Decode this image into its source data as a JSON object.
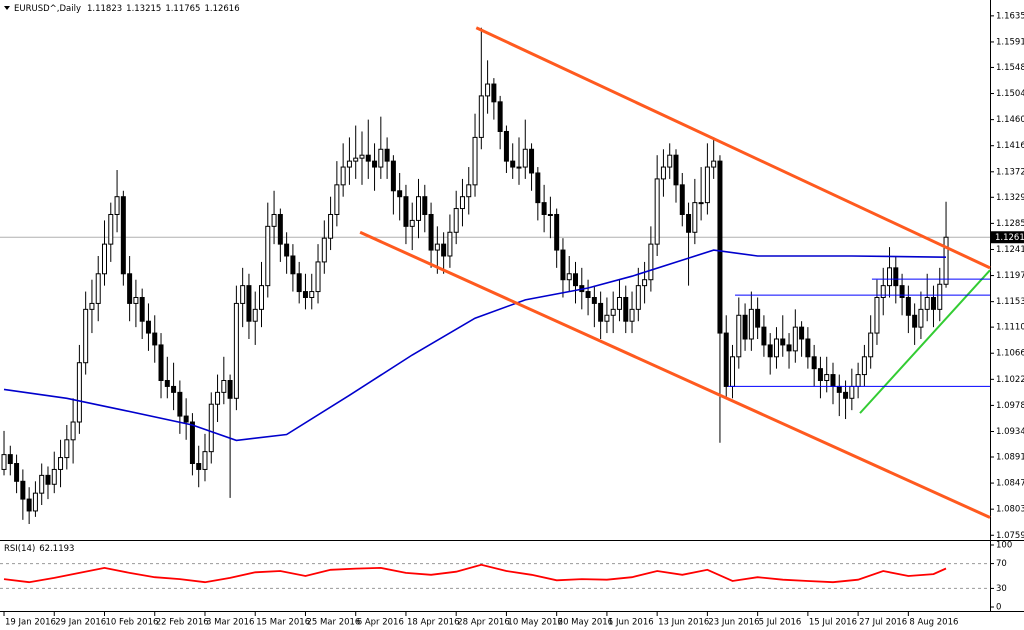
{
  "chart_data": {
    "type": "candlestick",
    "title": "EURUSD^,Daily",
    "categories": [
      "19 Jan 2016",
      null,
      null,
      null,
      null,
      null,
      null,
      null,
      "29 Jan 2016",
      null,
      null,
      null,
      null,
      null,
      null,
      null,
      "10 Feb 2016",
      null,
      null,
      null,
      null,
      null,
      null,
      null,
      "22 Feb 2016",
      null,
      null,
      null,
      null,
      null,
      null,
      null,
      "3 Mar 2016",
      null,
      null,
      null,
      null,
      null,
      null,
      null,
      "15 Mar 2016",
      null,
      null,
      null,
      null,
      null,
      null,
      null,
      "25 Mar 2016",
      null,
      null,
      null,
      null,
      null,
      null,
      null,
      "6 Apr 2016",
      null,
      null,
      null,
      null,
      null,
      null,
      null,
      "18 Apr 2016",
      null,
      null,
      null,
      null,
      null,
      null,
      null,
      "28 Apr 2016",
      null,
      null,
      null,
      null,
      null,
      null,
      null,
      "10 May 2016",
      null,
      null,
      null,
      null,
      null,
      null,
      null,
      "20 May 2016",
      null,
      null,
      null,
      null,
      null,
      null,
      null,
      "1 Jun 2016",
      null,
      null,
      null,
      null,
      null,
      null,
      null,
      "13 Jun 2016",
      null,
      null,
      null,
      null,
      null,
      null,
      null,
      "23 Jun 2016",
      null,
      null,
      null,
      null,
      null,
      null,
      null,
      "5 Jul 2016",
      null,
      null,
      null,
      null,
      null,
      null,
      null,
      "15 Jul 2016",
      null,
      null,
      null,
      null,
      null,
      null,
      null,
      "27 Jul 2016",
      null,
      null,
      null,
      null,
      null,
      null,
      null,
      "8 Aug 2016",
      null,
      null,
      null,
      null,
      null,
      null
    ],
    "ohlc": [
      [
        1.087,
        1.0935,
        1.086,
        1.0895
      ],
      [
        1.0895,
        1.091,
        1.086,
        1.088
      ],
      [
        1.088,
        1.0895,
        1.083,
        1.085
      ],
      [
        1.085,
        1.087,
        1.0785,
        1.082
      ],
      [
        1.082,
        1.084,
        1.0778,
        1.08
      ],
      [
        1.08,
        1.085,
        1.079,
        1.083
      ],
      [
        1.083,
        1.088,
        1.081,
        1.086
      ],
      [
        1.086,
        1.0875,
        1.082,
        1.0845
      ],
      [
        1.0845,
        1.09,
        1.083,
        1.087
      ],
      [
        1.087,
        1.092,
        1.084,
        1.089
      ],
      [
        1.089,
        1.0945,
        1.087,
        1.092
      ],
      [
        1.092,
        1.099,
        1.088,
        1.095
      ],
      [
        1.095,
        1.108,
        1.093,
        1.105
      ],
      [
        1.105,
        1.117,
        1.103,
        1.114
      ],
      [
        1.114,
        1.119,
        1.11,
        1.115
      ],
      [
        1.115,
        1.123,
        1.112,
        1.12
      ],
      [
        1.12,
        1.129,
        1.118,
        1.125
      ],
      [
        1.125,
        1.132,
        1.122,
        1.13
      ],
      [
        1.13,
        1.1375,
        1.127,
        1.133
      ],
      [
        1.133,
        1.134,
        1.118,
        1.12
      ],
      [
        1.12,
        1.123,
        1.112,
        1.115
      ],
      [
        1.115,
        1.119,
        1.111,
        1.116
      ],
      [
        1.116,
        1.1175,
        1.109,
        1.112
      ],
      [
        1.112,
        1.115,
        1.107,
        1.11
      ],
      [
        1.11,
        1.113,
        1.105,
        1.108
      ],
      [
        1.108,
        1.11,
        1.099,
        1.102
      ],
      [
        1.102,
        1.106,
        1.099,
        1.101
      ],
      [
        1.101,
        1.105,
        1.097,
        1.1
      ],
      [
        1.1,
        1.102,
        1.093,
        1.096
      ],
      [
        1.096,
        1.099,
        1.092,
        1.095
      ],
      [
        1.095,
        1.0965,
        1.086,
        1.088
      ],
      [
        1.088,
        1.091,
        1.084,
        1.087
      ],
      [
        1.087,
        1.093,
        1.085,
        1.09
      ],
      [
        1.09,
        1.1,
        1.088,
        1.098
      ],
      [
        1.098,
        1.103,
        1.095,
        1.1
      ],
      [
        1.1,
        1.106,
        1.098,
        1.102
      ],
      [
        1.102,
        1.103,
        1.0822,
        1.099
      ],
      [
        1.099,
        1.118,
        1.097,
        1.115
      ],
      [
        1.115,
        1.121,
        1.111,
        1.118
      ],
      [
        1.118,
        1.12,
        1.109,
        1.112
      ],
      [
        1.112,
        1.117,
        1.108,
        1.114
      ],
      [
        1.114,
        1.122,
        1.111,
        1.118
      ],
      [
        1.118,
        1.132,
        1.116,
        1.128
      ],
      [
        1.128,
        1.134,
        1.125,
        1.13
      ],
      [
        1.13,
        1.131,
        1.122,
        1.125
      ],
      [
        1.125,
        1.127,
        1.12,
        1.123
      ],
      [
        1.123,
        1.125,
        1.117,
        1.12
      ],
      [
        1.12,
        1.122,
        1.115,
        1.117
      ],
      [
        1.117,
        1.12,
        1.114,
        1.116
      ],
      [
        1.116,
        1.12,
        1.114,
        1.117
      ],
      [
        1.117,
        1.125,
        1.115,
        1.122
      ],
      [
        1.122,
        1.129,
        1.12,
        1.126
      ],
      [
        1.126,
        1.133,
        1.124,
        1.13
      ],
      [
        1.13,
        1.139,
        1.128,
        1.135
      ],
      [
        1.135,
        1.142,
        1.133,
        1.138
      ],
      [
        1.138,
        1.143,
        1.135,
        1.139
      ],
      [
        1.139,
        1.145,
        1.136,
        1.1395
      ],
      [
        1.1395,
        1.144,
        1.135,
        1.14
      ],
      [
        1.14,
        1.146,
        1.136,
        1.139
      ],
      [
        1.139,
        1.142,
        1.134,
        1.138
      ],
      [
        1.138,
        1.1465,
        1.136,
        1.141
      ],
      [
        1.141,
        1.143,
        1.136,
        1.139
      ],
      [
        1.139,
        1.14,
        1.13,
        1.134
      ],
      [
        1.134,
        1.137,
        1.129,
        1.133
      ],
      [
        1.133,
        1.135,
        1.125,
        1.128
      ],
      [
        1.128,
        1.132,
        1.124,
        1.129
      ],
      [
        1.129,
        1.136,
        1.126,
        1.133
      ],
      [
        1.133,
        1.135,
        1.127,
        1.13
      ],
      [
        1.13,
        1.132,
        1.121,
        1.124
      ],
      [
        1.124,
        1.128,
        1.12,
        1.125
      ],
      [
        1.125,
        1.127,
        1.12,
        1.123
      ],
      [
        1.123,
        1.13,
        1.121,
        1.127
      ],
      [
        1.127,
        1.134,
        1.125,
        1.131
      ],
      [
        1.131,
        1.136,
        1.128,
        1.133
      ],
      [
        1.133,
        1.138,
        1.13,
        1.135
      ],
      [
        1.135,
        1.147,
        1.133,
        1.143
      ],
      [
        1.143,
        1.1615,
        1.141,
        1.15
      ],
      [
        1.15,
        1.156,
        1.147,
        1.152
      ],
      [
        1.152,
        1.153,
        1.146,
        1.149
      ],
      [
        1.149,
        1.15,
        1.141,
        1.144
      ],
      [
        1.144,
        1.145,
        1.137,
        1.139
      ],
      [
        1.139,
        1.142,
        1.136,
        1.138
      ],
      [
        1.138,
        1.143,
        1.135,
        1.138
      ],
      [
        1.138,
        1.146,
        1.136,
        1.141
      ],
      [
        1.141,
        1.142,
        1.134,
        1.137
      ],
      [
        1.137,
        1.138,
        1.129,
        1.132
      ],
      [
        1.132,
        1.135,
        1.127,
        1.13
      ],
      [
        1.13,
        1.133,
        1.126,
        1.13
      ],
      [
        1.13,
        1.131,
        1.121,
        1.124
      ],
      [
        1.124,
        1.126,
        1.116,
        1.119
      ],
      [
        1.119,
        1.123,
        1.117,
        1.12
      ],
      [
        1.12,
        1.122,
        1.115,
        1.118
      ],
      [
        1.118,
        1.121,
        1.114,
        1.117
      ],
      [
        1.117,
        1.119,
        1.113,
        1.116
      ],
      [
        1.116,
        1.118,
        1.111,
        1.115
      ],
      [
        1.115,
        1.117,
        1.109,
        1.112
      ],
      [
        1.112,
        1.116,
        1.11,
        1.113
      ],
      [
        1.113,
        1.117,
        1.11,
        1.114
      ],
      [
        1.114,
        1.119,
        1.112,
        1.116
      ],
      [
        1.116,
        1.118,
        1.11,
        1.112
      ],
      [
        1.112,
        1.117,
        1.11,
        1.114
      ],
      [
        1.114,
        1.121,
        1.112,
        1.118
      ],
      [
        1.118,
        1.122,
        1.115,
        1.119
      ],
      [
        1.119,
        1.128,
        1.117,
        1.125
      ],
      [
        1.125,
        1.14,
        1.123,
        1.136
      ],
      [
        1.136,
        1.141,
        1.133,
        1.138
      ],
      [
        1.138,
        1.142,
        1.136,
        1.14
      ],
      [
        1.14,
        1.141,
        1.132,
        1.135
      ],
      [
        1.135,
        1.137,
        1.128,
        1.13
      ],
      [
        1.13,
        1.132,
        1.118,
        1.127
      ],
      [
        1.127,
        1.136,
        1.125,
        1.132
      ],
      [
        1.132,
        1.138,
        1.129,
        1.132
      ],
      [
        1.132,
        1.142,
        1.13,
        1.138
      ],
      [
        1.138,
        1.143,
        1.136,
        1.139
      ],
      [
        1.139,
        1.14,
        1.0915,
        1.11
      ],
      [
        1.11,
        1.113,
        1.099,
        1.101
      ],
      [
        1.101,
        1.108,
        1.099,
        1.106
      ],
      [
        1.106,
        1.116,
        1.104,
        1.113
      ],
      [
        1.113,
        1.115,
        1.107,
        1.109
      ],
      [
        1.109,
        1.117,
        1.107,
        1.114
      ],
      [
        1.114,
        1.116,
        1.109,
        1.111
      ],
      [
        1.111,
        1.113,
        1.106,
        1.108
      ],
      [
        1.108,
        1.11,
        1.103,
        1.106
      ],
      [
        1.106,
        1.111,
        1.104,
        1.109
      ],
      [
        1.109,
        1.113,
        1.106,
        1.108
      ],
      [
        1.108,
        1.11,
        1.104,
        1.107
      ],
      [
        1.107,
        1.114,
        1.105,
        1.111
      ],
      [
        1.111,
        1.112,
        1.106,
        1.109
      ],
      [
        1.109,
        1.111,
        1.104,
        1.106
      ],
      [
        1.106,
        1.108,
        1.101,
        1.104
      ],
      [
        1.104,
        1.106,
        1.099,
        1.102
      ],
      [
        1.102,
        1.106,
        1.1,
        1.103
      ],
      [
        1.103,
        1.105,
        1.098,
        1.101
      ],
      [
        1.101,
        1.103,
        1.096,
        1.1
      ],
      [
        1.1,
        1.102,
        1.0955,
        1.099
      ],
      [
        1.099,
        1.104,
        1.097,
        1.101
      ],
      [
        1.101,
        1.105,
        1.099,
        1.103
      ],
      [
        1.103,
        1.108,
        1.101,
        1.106
      ],
      [
        1.106,
        1.113,
        1.104,
        1.11
      ],
      [
        1.11,
        1.119,
        1.108,
        1.116
      ],
      [
        1.116,
        1.121,
        1.113,
        1.118
      ],
      [
        1.118,
        1.1245,
        1.116,
        1.121
      ],
      [
        1.121,
        1.123,
        1.115,
        1.118
      ],
      [
        1.118,
        1.12,
        1.113,
        1.116
      ],
      [
        1.116,
        1.118,
        1.11,
        1.113
      ],
      [
        1.113,
        1.115,
        1.108,
        1.111
      ],
      [
        1.111,
        1.117,
        1.109,
        1.114
      ],
      [
        1.114,
        1.12,
        1.112,
        1.116
      ],
      [
        1.116,
        1.118,
        1.111,
        1.114
      ],
      [
        1.114,
        1.121,
        1.112,
        1.11823
      ],
      [
        1.11823,
        1.13215,
        1.11765,
        1.12616
      ]
    ],
    "up_color": "#ffffff",
    "down_color": "#000000",
    "xlim": [
      -0.64,
      157
    ],
    "ylim": [
      1.0751,
      1.1655
    ],
    "yticks": [
      {
        "value": 1.1635,
        "label": "1.16350"
      },
      {
        "value": 1.1591,
        "label": "1.15910"
      },
      {
        "value": 1.1548,
        "label": "1.15480"
      },
      {
        "value": 1.1504,
        "label": "1.15040"
      },
      {
        "value": 1.146,
        "label": "1.14600"
      },
      {
        "value": 1.1416,
        "label": "1.14160"
      },
      {
        "value": 1.1372,
        "label": "1.13720"
      },
      {
        "value": 1.1329,
        "label": "1.13290"
      },
      {
        "value": 1.1285,
        "label": "1.12850"
      },
      {
        "value": 1.1241,
        "label": "1.12410"
      },
      {
        "value": 1.1197,
        "label": "1.11970"
      },
      {
        "value": 1.1153,
        "label": "1.11530"
      },
      {
        "value": 1.111,
        "label": "1.11100"
      },
      {
        "value": 1.1066,
        "label": "1.10660"
      },
      {
        "value": 1.1022,
        "label": "1.10220"
      },
      {
        "value": 1.0978,
        "label": "1.09780"
      },
      {
        "value": 1.0934,
        "label": "1.09340"
      },
      {
        "value": 1.0891,
        "label": "1.08910"
      },
      {
        "value": 1.0847,
        "label": "1.08470"
      },
      {
        "value": 1.0803,
        "label": "1.08030"
      },
      {
        "value": 1.0759,
        "label": "1.07590"
      }
    ],
    "ma": {
      "color": "#0000cc",
      "x": [
        0,
        10,
        19,
        30,
        37,
        45,
        55,
        65,
        75,
        83,
        93,
        100,
        108,
        113,
        120,
        135,
        150
      ],
      "values": [
        1.1005,
        1.099,
        1.097,
        1.0945,
        1.0919,
        1.0929,
        1.0995,
        1.1063,
        1.1125,
        1.1156,
        1.1176,
        1.1196,
        1.1223,
        1.124,
        1.123,
        1.123,
        1.1228
      ]
    },
    "lines": [
      {
        "color": "#ff5a1f",
        "width": 3,
        "points": [
          [
            75.2,
            1.1615
          ],
          [
            157,
            1.121
          ]
        ]
      },
      {
        "color": "#ff5a1f",
        "width": 3,
        "points": [
          [
            56.7,
            1.127
          ],
          [
            157,
            1.0789
          ]
        ]
      },
      {
        "color": "#33cc33",
        "width": 2,
        "points": [
          [
            136.3,
            1.0965
          ],
          [
            157,
            1.1206
          ]
        ]
      },
      {
        "color": "#0000ff",
        "width": 1,
        "points": [
          [
            138.2,
            1.1191
          ],
          [
            157,
            1.1191
          ]
        ]
      },
      {
        "color": "#0000ff",
        "width": 1,
        "points": [
          [
            116.4,
            1.1164
          ],
          [
            157,
            1.1164
          ]
        ]
      },
      {
        "color": "#0000ff",
        "width": 1,
        "points": [
          [
            115.3,
            1.101
          ],
          [
            157,
            1.101
          ]
        ]
      }
    ],
    "indicator": {
      "title": "RSI(14)",
      "color": "#ff0000",
      "x": [
        0,
        4,
        8,
        12,
        16,
        20,
        24,
        28,
        32,
        36,
        40,
        44,
        48,
        52,
        56,
        60,
        64,
        68,
        72,
        76,
        80,
        84,
        88,
        92,
        96,
        100,
        104,
        108,
        112,
        116,
        120,
        124,
        128,
        132,
        136,
        140,
        144,
        148,
        150
      ],
      "values": [
        45,
        40,
        47,
        55,
        63,
        55,
        48,
        45,
        40,
        47,
        56,
        58,
        50,
        60,
        62,
        63,
        55,
        52,
        57,
        68,
        58,
        52,
        43,
        45,
        44,
        48,
        58,
        52,
        60,
        42,
        48,
        44,
        42,
        40,
        44,
        58,
        50,
        53,
        62.1193
      ],
      "ylim": [
        0,
        100
      ],
      "yticks": [
        100,
        70,
        30,
        0
      ],
      "levels": [
        70,
        30
      ]
    }
  }
}
